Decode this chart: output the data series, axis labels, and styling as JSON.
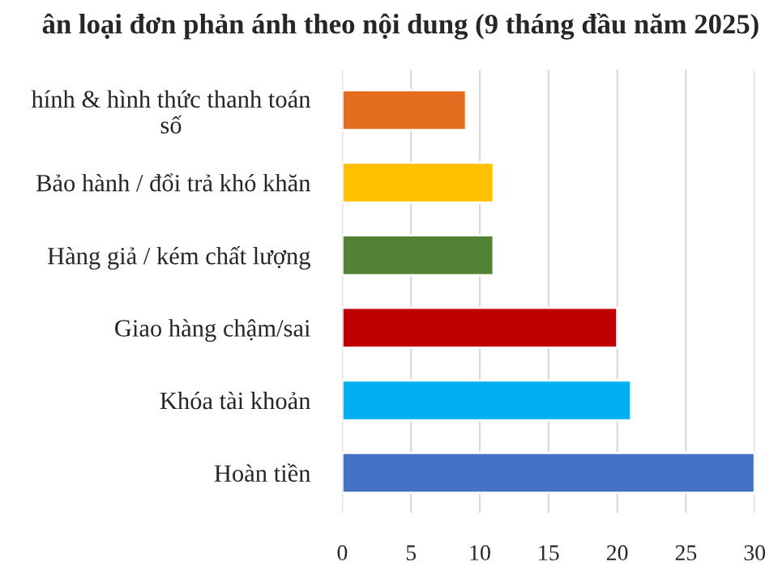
{
  "chart_data": {
    "type": "bar",
    "orientation": "horizontal",
    "title": "ân loại đơn phản ánh theo nội dung (9 tháng đầu năm 2025)",
    "categories": [
      "hính & hình thức thanh toán\nsố",
      "Bảo hành / đổi trả khó khăn",
      "Hàng giả / kém chất lượng",
      "Giao hàng chậm/sai",
      "Khóa tài khoản",
      "Hoàn tiền"
    ],
    "values": [
      9,
      11,
      11,
      20,
      21,
      30
    ],
    "colors": [
      "#e46c1f",
      "#ffc000",
      "#548235",
      "#c00000",
      "#00b0f0",
      "#4472c4"
    ],
    "xlim": [
      0,
      30
    ],
    "xticks": [
      0,
      5,
      10,
      15,
      20,
      25,
      30
    ],
    "grid": "x"
  }
}
